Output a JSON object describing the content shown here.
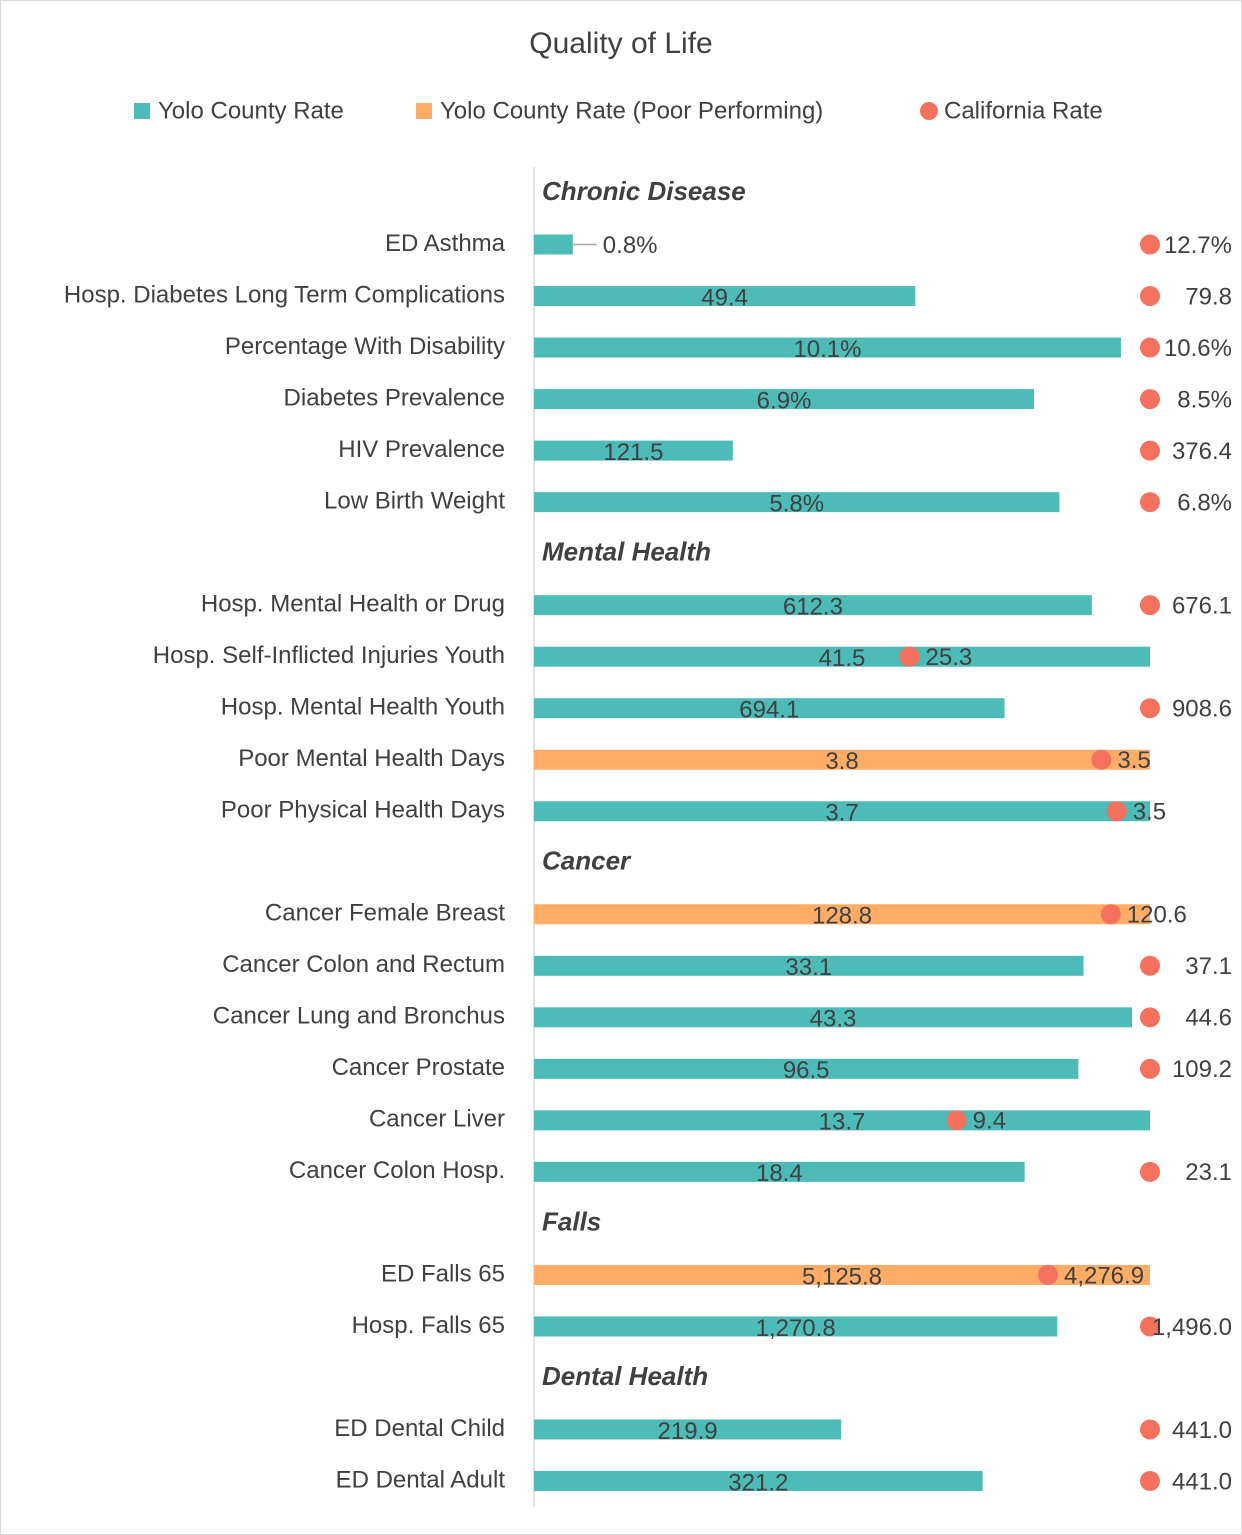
{
  "chart_data": {
    "type": "bar",
    "title": "Quality of Life",
    "groups": [
      {
        "name": "Chronic Disease",
        "categories": [
          "ED Asthma",
          "Hosp. Diabetes Long Term Complications",
          "Percentage With Disability",
          "Diabetes Prevalence",
          "HIV Prevalence",
          "Low Birth Weight"
        ]
      },
      {
        "name": "Mental Health",
        "categories": [
          "Hosp. Mental Health or Drug",
          "Hosp. Self-Inflicted Injuries Youth",
          "Hosp. Mental Health Youth",
          "Poor Mental Health Days",
          "Poor Physical Health Days"
        ]
      },
      {
        "name": "Cancer",
        "categories": [
          "Cancer Female Breast",
          "Cancer Colon and Rectum",
          "Cancer Lung and Bronchus",
          "Cancer Prostate",
          "Cancer Liver",
          "Cancer Colon Hosp."
        ]
      },
      {
        "name": "Falls",
        "categories": [
          "ED Falls 65",
          "Hosp. Falls 65"
        ]
      },
      {
        "name": "Dental Health",
        "categories": [
          "ED Dental Child",
          "ED Dental Adult"
        ]
      }
    ],
    "series": [
      {
        "name": "Yolo County Rate",
        "color": "#4dbbb8",
        "values": [
          0.8,
          49.4,
          10.1,
          6.9,
          121.5,
          5.8,
          612.3,
          41.5,
          694.1,
          null,
          3.7,
          null,
          33.1,
          43.3,
          96.5,
          13.7,
          18.4,
          null,
          1270.8,
          219.9,
          321.2
        ],
        "value_labels": [
          "0.8%",
          "49.4",
          "10.1%",
          "6.9%",
          "121.5",
          "5.8%",
          "612.3",
          "41.5",
          "694.1",
          null,
          "3.7",
          null,
          "33.1",
          "43.3",
          "96.5",
          "13.7",
          "18.4",
          null,
          "1,270.8",
          "219.9",
          "321.2"
        ]
      },
      {
        "name": "Yolo County Rate (Poor Performing)",
        "color": "#ffad66",
        "values": [
          null,
          null,
          null,
          null,
          null,
          null,
          null,
          null,
          null,
          3.8,
          null,
          128.8,
          null,
          null,
          null,
          null,
          null,
          5125.8,
          null,
          null,
          null
        ],
        "value_labels": [
          null,
          null,
          null,
          null,
          null,
          null,
          null,
          null,
          null,
          "3.8",
          null,
          "128.8",
          null,
          null,
          null,
          null,
          null,
          "5,125.8",
          null,
          null,
          null
        ]
      },
      {
        "name": "California Rate",
        "color": "#f4715e",
        "values": [
          12.7,
          79.8,
          10.6,
          8.5,
          376.4,
          6.8,
          676.1,
          25.3,
          908.6,
          3.5,
          3.5,
          120.6,
          37.1,
          44.6,
          109.2,
          9.4,
          23.1,
          4276.9,
          1496.0,
          441.0,
          441.0
        ],
        "value_labels": [
          "12.7%",
          "79.8",
          "10.6%",
          "8.5%",
          "376.4",
          "6.8%",
          "676.1",
          "25.3",
          "908.6",
          "3.5",
          "3.5",
          "120.6",
          "37.1",
          "44.6",
          "109.2",
          "9.4",
          "23.1",
          "4,276.9",
          "1,496.0",
          "441.0",
          "441.0"
        ]
      }
    ]
  }
}
